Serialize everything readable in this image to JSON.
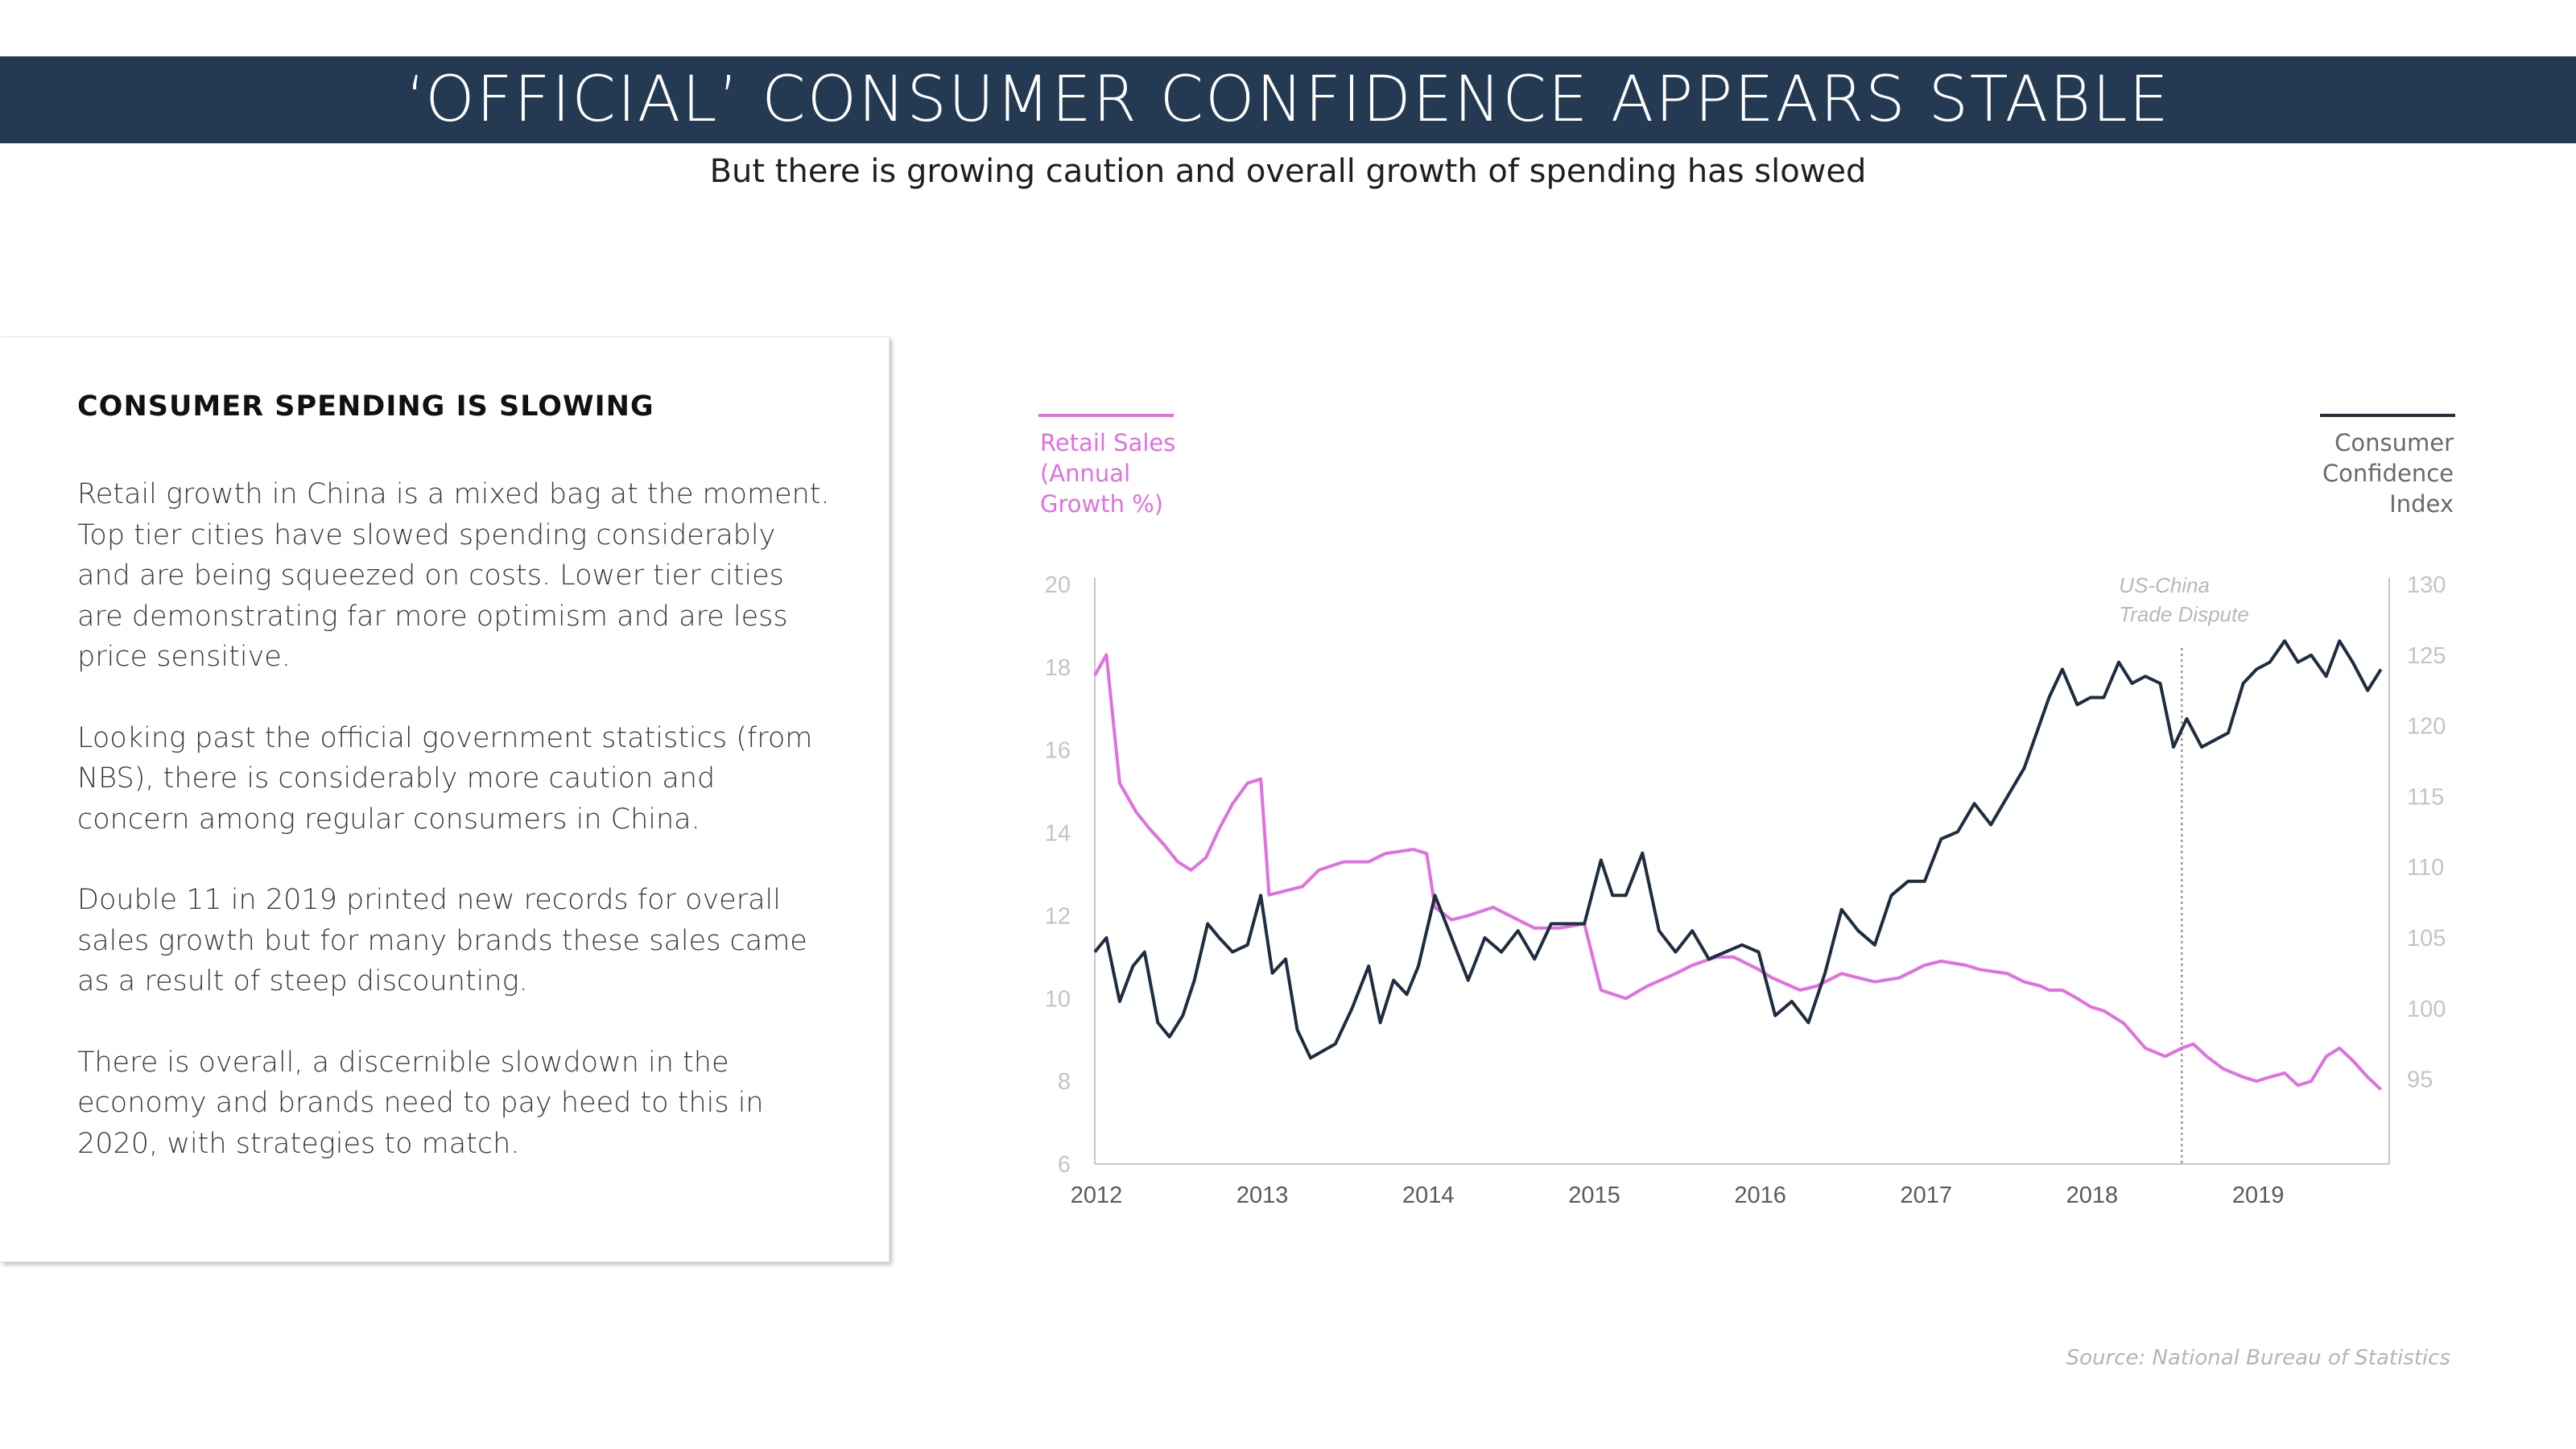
{
  "header": {
    "title": "‘OFFICIAL’ CONSUMER CONFIDENCE APPEARS STABLE",
    "subtitle": "But there is growing caution and overall growth of spending has slowed"
  },
  "card": {
    "heading": "CONSUMER SPENDING IS SLOWING",
    "paragraphs": [
      "Retail growth in China is a mixed bag at the moment. Top tier cities have slowed spending considerably and are being squeezed on costs. Lower tier cities are demonstrating far more optimism and are less price sensitive.",
      "Looking past the official government statistics (from NBS), there is considerably more caution and concern among regular consumers in China.",
      "Double 11 in 2019 printed new records for overall sales growth but for many brands these sales came as a result of steep discounting.",
      "There is overall, a discernible slowdown in the economy and brands need to pay heed to this in 2020, with strategies to match."
    ]
  },
  "source": "Source: National Bureau of Statistics",
  "colors": {
    "banner": "#243a52",
    "retail": "#e070e0",
    "confidence": "#1f2d40",
    "axis": "#c8c8c8",
    "tick_text": "#c4c4c4"
  },
  "chart_data": {
    "type": "line",
    "title": "",
    "legend": {
      "left_lines": [
        "Retail Sales",
        "(Annual",
        "Growth %)"
      ],
      "right_lines": [
        "Consumer",
        "Confidence",
        "Index"
      ]
    },
    "x_range": [
      2012.0,
      2019.8
    ],
    "x_ticks": [
      2012,
      2013,
      2014,
      2015,
      2016,
      2017,
      2018,
      2019
    ],
    "y_left": {
      "label": "Retail Sales (Annual Growth %)",
      "range": [
        6,
        20
      ],
      "ticks": [
        6,
        8,
        10,
        12,
        14,
        16,
        18,
        20
      ]
    },
    "y_right": {
      "label": "Consumer Confidence Index",
      "range": [
        89,
        130
      ],
      "ticks": [
        95,
        100,
        105,
        110,
        115,
        120,
        125,
        130
      ]
    },
    "annotation": {
      "x": 2018.55,
      "lines": [
        "US-China",
        "Trade Dispute"
      ]
    },
    "series": [
      {
        "name": "Retail Sales (Annual Growth %)",
        "axis": "left",
        "x": [
          2012.0,
          2012.07,
          2012.15,
          2012.25,
          2012.33,
          2012.42,
          2012.5,
          2012.58,
          2012.67,
          2012.75,
          2012.83,
          2012.92,
          2013.0,
          2013.05,
          2013.25,
          2013.35,
          2013.5,
          2013.65,
          2013.75,
          2013.92,
          2014.0,
          2014.05,
          2014.15,
          2014.25,
          2014.4,
          2014.55,
          2014.65,
          2014.8,
          2014.95,
          2015.05,
          2015.2,
          2015.33,
          2015.5,
          2015.6,
          2015.67,
          2015.75,
          2015.85,
          2016.0,
          2016.08,
          2016.25,
          2016.35,
          2016.5,
          2016.7,
          2016.85,
          2017.0,
          2017.1,
          2017.25,
          2017.33,
          2017.5,
          2017.6,
          2017.7,
          2017.75,
          2017.83,
          2017.92,
          2018.0,
          2018.08,
          2018.2,
          2018.33,
          2018.45,
          2018.55,
          2018.62,
          2018.7,
          2018.8,
          2018.92,
          2019.0,
          2019.08,
          2019.17,
          2019.25,
          2019.33,
          2019.42,
          2019.5,
          2019.58,
          2019.67,
          2019.75
        ],
        "values": [
          17.8,
          18.3,
          15.2,
          14.5,
          14.1,
          13.7,
          13.3,
          13.1,
          13.4,
          14.1,
          14.7,
          15.2,
          15.3,
          12.5,
          12.7,
          13.1,
          13.3,
          13.3,
          13.5,
          13.6,
          13.5,
          12.2,
          11.9,
          12.0,
          12.2,
          11.9,
          11.7,
          11.7,
          11.8,
          10.2,
          10.0,
          10.3,
          10.6,
          10.8,
          10.9,
          11.0,
          11.0,
          10.7,
          10.5,
          10.2,
          10.3,
          10.6,
          10.4,
          10.5,
          10.8,
          10.9,
          10.8,
          10.7,
          10.6,
          10.4,
          10.3,
          10.2,
          10.2,
          10.0,
          9.8,
          9.7,
          9.4,
          8.8,
          8.6,
          8.8,
          8.9,
          8.6,
          8.3,
          8.1,
          8.0,
          8.1,
          8.2,
          7.9,
          8.0,
          8.6,
          8.8,
          8.5,
          8.1,
          7.8
        ]
      },
      {
        "name": "Consumer Confidence Index",
        "axis": "right",
        "x": [
          2012.0,
          2012.07,
          2012.15,
          2012.23,
          2012.3,
          2012.38,
          2012.45,
          2012.53,
          2012.6,
          2012.68,
          2012.75,
          2012.83,
          2012.92,
          2013.0,
          2013.07,
          2013.15,
          2013.22,
          2013.3,
          2013.45,
          2013.55,
          2013.65,
          2013.72,
          2013.8,
          2013.88,
          2013.95,
          2014.05,
          2014.15,
          2014.25,
          2014.35,
          2014.45,
          2014.55,
          2014.65,
          2014.75,
          2014.85,
          2014.95,
          2015.05,
          2015.12,
          2015.2,
          2015.3,
          2015.4,
          2015.5,
          2015.6,
          2015.7,
          2015.8,
          2015.9,
          2016.0,
          2016.1,
          2016.2,
          2016.3,
          2016.4,
          2016.5,
          2016.6,
          2016.7,
          2016.8,
          2016.9,
          2017.0,
          2017.1,
          2017.2,
          2017.3,
          2017.4,
          2017.5,
          2017.6,
          2017.75,
          2017.83,
          2017.92,
          2018.0,
          2018.08,
          2018.17,
          2018.25,
          2018.33,
          2018.42,
          2018.5,
          2018.58,
          2018.67,
          2018.75,
          2018.83,
          2018.92,
          2019.0,
          2019.08,
          2019.17,
          2019.25,
          2019.33,
          2019.42,
          2019.5,
          2019.58,
          2019.67,
          2019.75
        ],
        "values": [
          104.0,
          105.0,
          100.5,
          103.0,
          104.0,
          99.0,
          98.0,
          99.5,
          102.0,
          106.0,
          105.0,
          104.0,
          104.5,
          108.0,
          102.5,
          103.5,
          98.5,
          96.5,
          97.5,
          100.0,
          103.0,
          99.0,
          102.0,
          101.0,
          103.0,
          108.0,
          105.0,
          102.0,
          105.0,
          104.0,
          105.5,
          103.5,
          106.0,
          106.0,
          106.0,
          110.5,
          108.0,
          108.0,
          111.0,
          105.5,
          104.0,
          105.5,
          103.5,
          104.0,
          104.5,
          104.0,
          99.5,
          100.5,
          99.0,
          102.5,
          107.0,
          105.5,
          104.5,
          108.0,
          109.0,
          109.0,
          112.0,
          112.5,
          114.5,
          113.0,
          115.0,
          117.0,
          122.0,
          124.0,
          121.5,
          122.0,
          122.0,
          124.5,
          123.0,
          123.5,
          123.0,
          118.5,
          120.5,
          118.5,
          119.0,
          119.5,
          123.0,
          124.0,
          124.5,
          126.0,
          124.5,
          125.0,
          123.5,
          126.0,
          124.5,
          122.5,
          124.0
        ]
      }
    ]
  }
}
